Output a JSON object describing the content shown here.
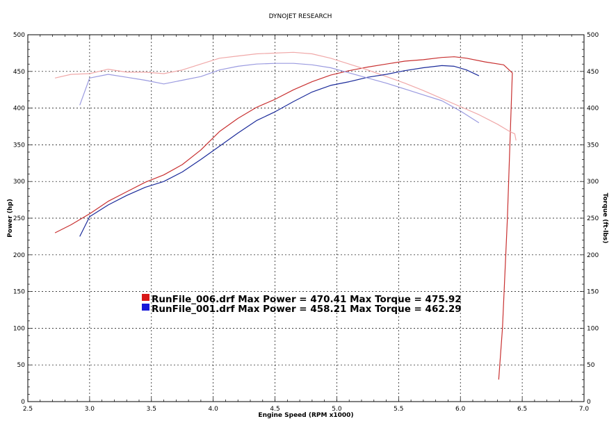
{
  "chart_data": {
    "type": "line",
    "title": "DYNOJET RESEARCH",
    "xlabel": "Engine Speed (RPM x1000)",
    "ylabel": "Power (hp)",
    "y2label": "Torque (ft-lbs)",
    "xlim": [
      2.5,
      7.0
    ],
    "ylim": [
      0,
      500
    ],
    "y2lim": [
      0,
      500
    ],
    "xticks": [
      "2.5",
      "3.0",
      "3.5",
      "4.0",
      "4.5",
      "5.0",
      "5.5",
      "6.0",
      "6.5",
      "7.0"
    ],
    "yticks": [
      "0",
      "50",
      "100",
      "150",
      "200",
      "250",
      "300",
      "350",
      "400",
      "450",
      "500"
    ],
    "y2ticks": [
      "0",
      "50",
      "100",
      "150",
      "200",
      "250",
      "300",
      "350",
      "400",
      "450",
      "500"
    ],
    "grid": true,
    "legend_position": "center-left",
    "series": [
      {
        "name": "RunFile_006.drf",
        "kind": "power",
        "color": "#c83030",
        "x": [
          2.72,
          2.85,
          3.0,
          3.15,
          3.3,
          3.45,
          3.6,
          3.75,
          3.9,
          4.05,
          4.2,
          4.35,
          4.5,
          4.65,
          4.8,
          4.95,
          5.1,
          5.25,
          5.4,
          5.55,
          5.7,
          5.85,
          5.95,
          6.05,
          6.2,
          6.35,
          6.42,
          6.38,
          6.34,
          6.31
        ],
        "y": [
          230,
          241,
          256,
          273,
          286,
          299,
          309,
          323,
          343,
          368,
          386,
          401,
          412,
          425,
          436,
          445,
          451,
          456,
          460,
          464,
          466,
          469,
          470,
          468,
          463,
          459,
          448,
          250,
          100,
          30
        ]
      },
      {
        "name": "RunFile_006.drf",
        "kind": "torque",
        "color": "#f0a8a8",
        "x": [
          2.72,
          2.85,
          3.0,
          3.15,
          3.3,
          3.45,
          3.6,
          3.75,
          3.9,
          4.05,
          4.2,
          4.35,
          4.5,
          4.65,
          4.8,
          4.95,
          5.1,
          5.25,
          5.4,
          5.55,
          5.7,
          5.85,
          6.0,
          6.15,
          6.3,
          6.4,
          6.44,
          6.45
        ],
        "y": [
          441,
          446,
          447,
          453,
          449,
          449,
          447,
          452,
          460,
          468,
          471,
          474,
          475,
          476,
          474,
          468,
          460,
          452,
          443,
          434,
          424,
          413,
          402,
          391,
          378,
          368,
          365,
          356
        ]
      },
      {
        "name": "RunFile_001.drf",
        "kind": "power",
        "color": "#1a2a9a",
        "x": [
          2.92,
          3.0,
          3.15,
          3.3,
          3.45,
          3.6,
          3.75,
          3.9,
          4.05,
          4.2,
          4.35,
          4.5,
          4.65,
          4.8,
          4.95,
          5.1,
          5.25,
          5.4,
          5.55,
          5.7,
          5.85,
          5.95,
          6.05,
          6.15
        ],
        "y": [
          225,
          252,
          268,
          281,
          292,
          300,
          313,
          330,
          348,
          366,
          383,
          395,
          409,
          422,
          431,
          436,
          442,
          446,
          451,
          455,
          458,
          457,
          452,
          444
        ]
      },
      {
        "name": "RunFile_001.drf",
        "kind": "torque",
        "color": "#9a9ae0",
        "x": [
          2.92,
          3.0,
          3.15,
          3.3,
          3.45,
          3.6,
          3.75,
          3.9,
          4.05,
          4.2,
          4.35,
          4.5,
          4.65,
          4.8,
          4.95,
          5.1,
          5.25,
          5.4,
          5.55,
          5.7,
          5.85,
          6.0,
          6.15
        ],
        "y": [
          404,
          441,
          446,
          442,
          438,
          433,
          438,
          443,
          452,
          457,
          460,
          461,
          461,
          459,
          455,
          448,
          441,
          434,
          426,
          418,
          410,
          396,
          380
        ]
      }
    ],
    "legend": [
      {
        "color": "#d81818",
        "text": "RunFile_006.drf Max Power = 470.41      Max Torque = 475.92"
      },
      {
        "color": "#1818d8",
        "text": "RunFile_001.drf Max Power = 458.21      Max Torque = 462.29"
      }
    ]
  }
}
